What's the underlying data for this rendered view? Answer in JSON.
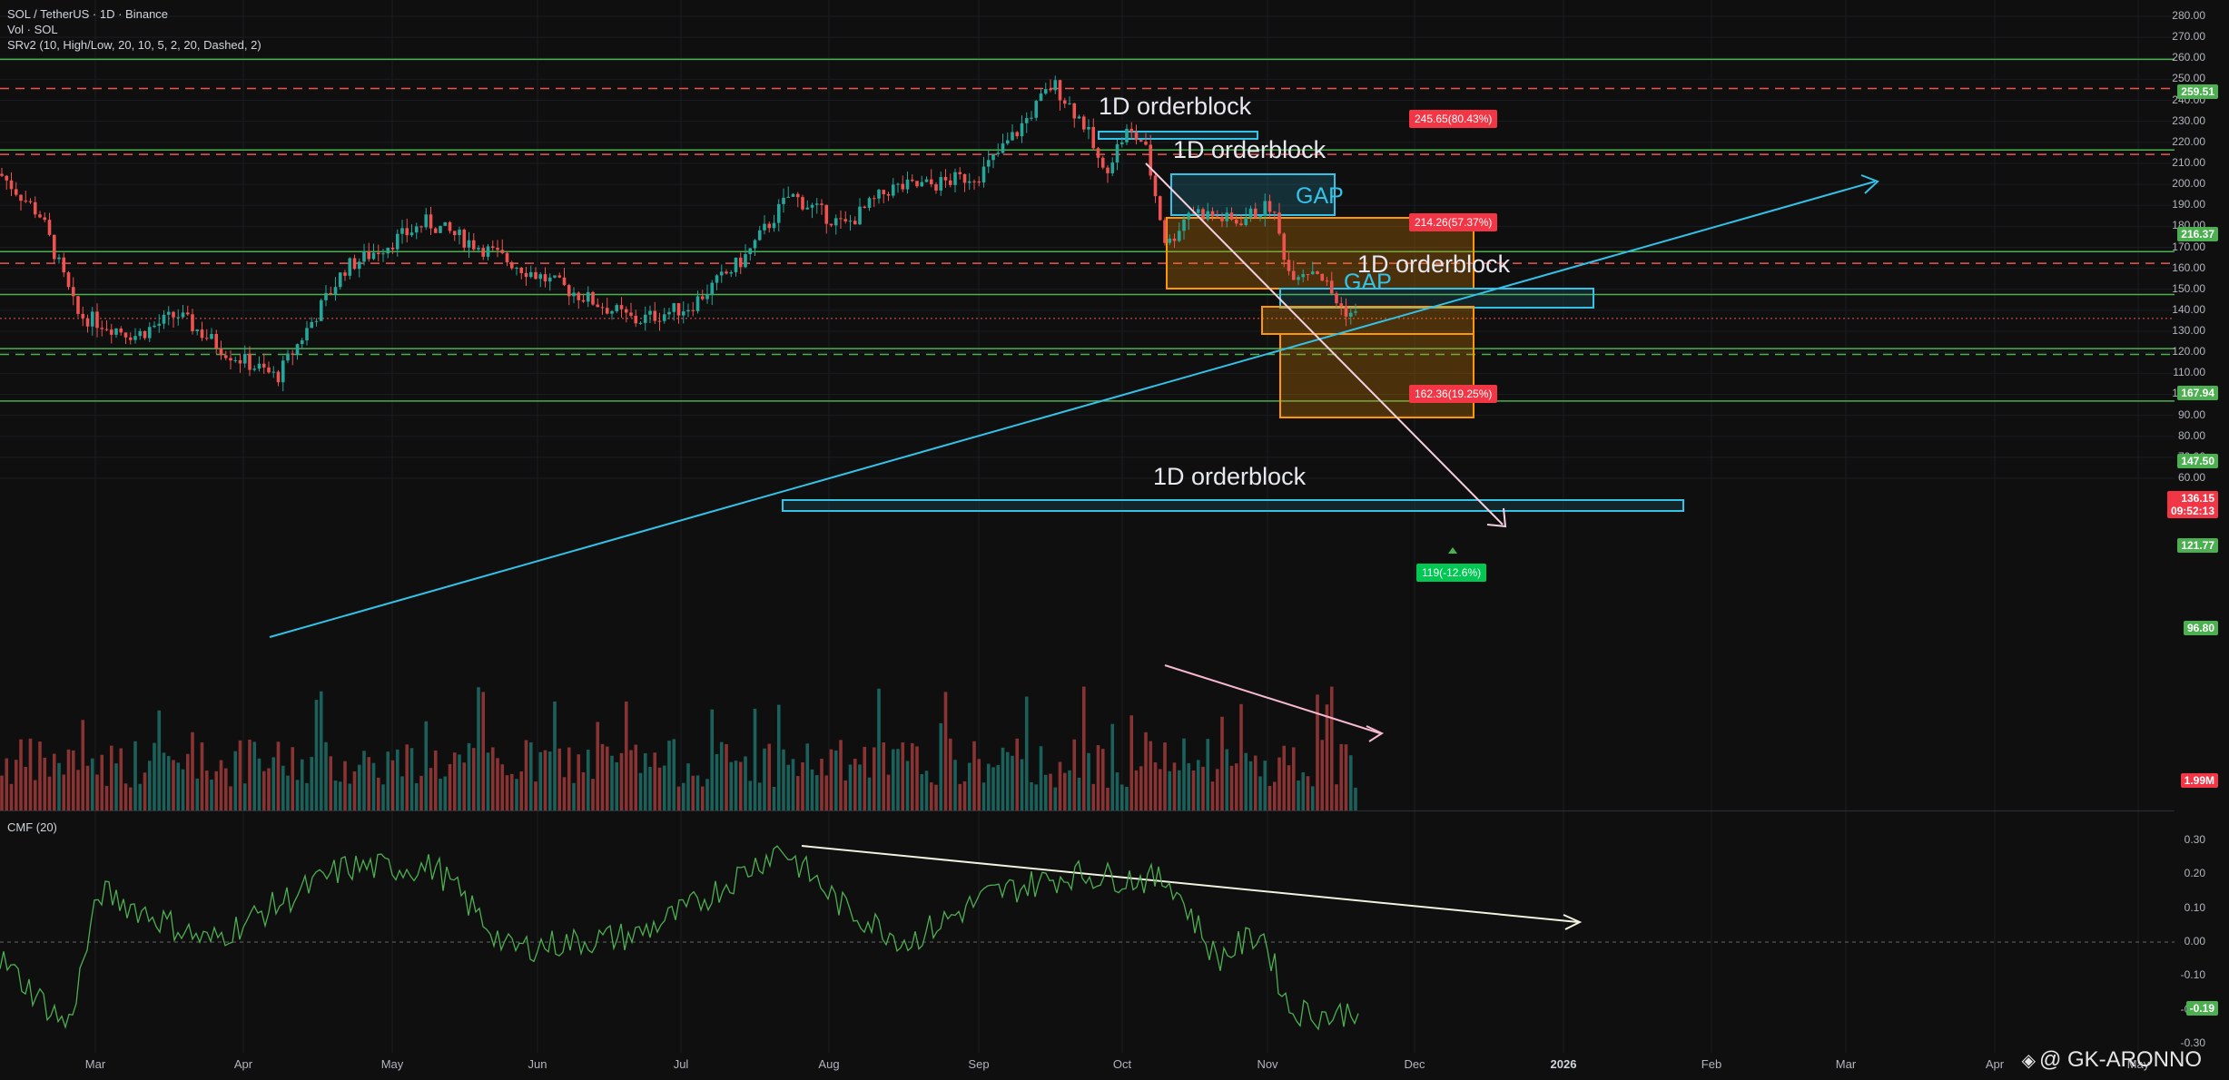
{
  "legend": {
    "symbol_line": "SOL / TetherUS · 1D · Binance",
    "volume_line": "Vol · SOL",
    "indicator_line": "SRv2 (10, High/Low, 20, 10, 5, 2, 20, Dashed, 2)",
    "cmf_line": "CMF (20)"
  },
  "price_axis": {
    "ticks": [
      "280.00",
      "270.00",
      "260.00",
      "250.00",
      "240.00",
      "230.00",
      "220.00",
      "210.00",
      "200.00",
      "190.00",
      "180.00",
      "170.00",
      "160.00",
      "150.00",
      "140.00",
      "130.00",
      "120.00",
      "110.00",
      "100.00",
      "90.00",
      "80.00",
      "70.00",
      "60.00"
    ],
    "badges": {
      "r1": "259.51",
      "r2": "216.37",
      "r3": "167.94",
      "r4": "147.50",
      "current_price": "136.15",
      "countdown": "09:52:13",
      "s1": "121.77",
      "s2": "96.80",
      "volume": "1.99M"
    }
  },
  "cmf_axis": {
    "ticks": [
      "0.30",
      "0.20",
      "0.10",
      "0.00",
      "-0.10",
      "-0.20",
      "-0.30"
    ],
    "current": "-0.19"
  },
  "time_axis": [
    "Mar",
    "Apr",
    "May",
    "Jun",
    "Jul",
    "Aug",
    "Sep",
    "Oct",
    "Nov",
    "Dec",
    "2026",
    "Feb",
    "Mar",
    "Apr",
    "May"
  ],
  "annotations": {
    "ob1": "1D orderblock",
    "ob2": "1D orderblock",
    "ob3": "1D orderblock",
    "ob4": "1D orderblock",
    "gap1": "GAP",
    "gap2": "GAP",
    "target_a": "245.65(80.43%)",
    "target_b": "214.26(57.37%)",
    "target_c": "162.36(19.25%)",
    "target_d": "119(-12.6%)"
  },
  "watermark": "@ GK-ARONNO",
  "colors": {
    "up": "#26a69a",
    "down": "#ef5350",
    "support": "#4caf50",
    "accent": "#33c2e8",
    "cmf": "#4caf50"
  },
  "chart_data": {
    "type": "candlestick",
    "symbol": "SOL / TetherUS",
    "interval": "1D",
    "price_range": [
      55,
      285
    ],
    "cmf_range": [
      -0.3,
      0.3
    ],
    "horizontal_levels": {
      "solid_green": [
        259.51,
        216.37,
        167.94,
        147.5,
        121.77,
        96.8
      ],
      "dashed_red": [
        245.65,
        214.26,
        162.36
      ],
      "dashed_green": [
        119
      ]
    },
    "last_close": 136.15,
    "last_volume": "1.99M",
    "last_cmf": -0.19
  }
}
